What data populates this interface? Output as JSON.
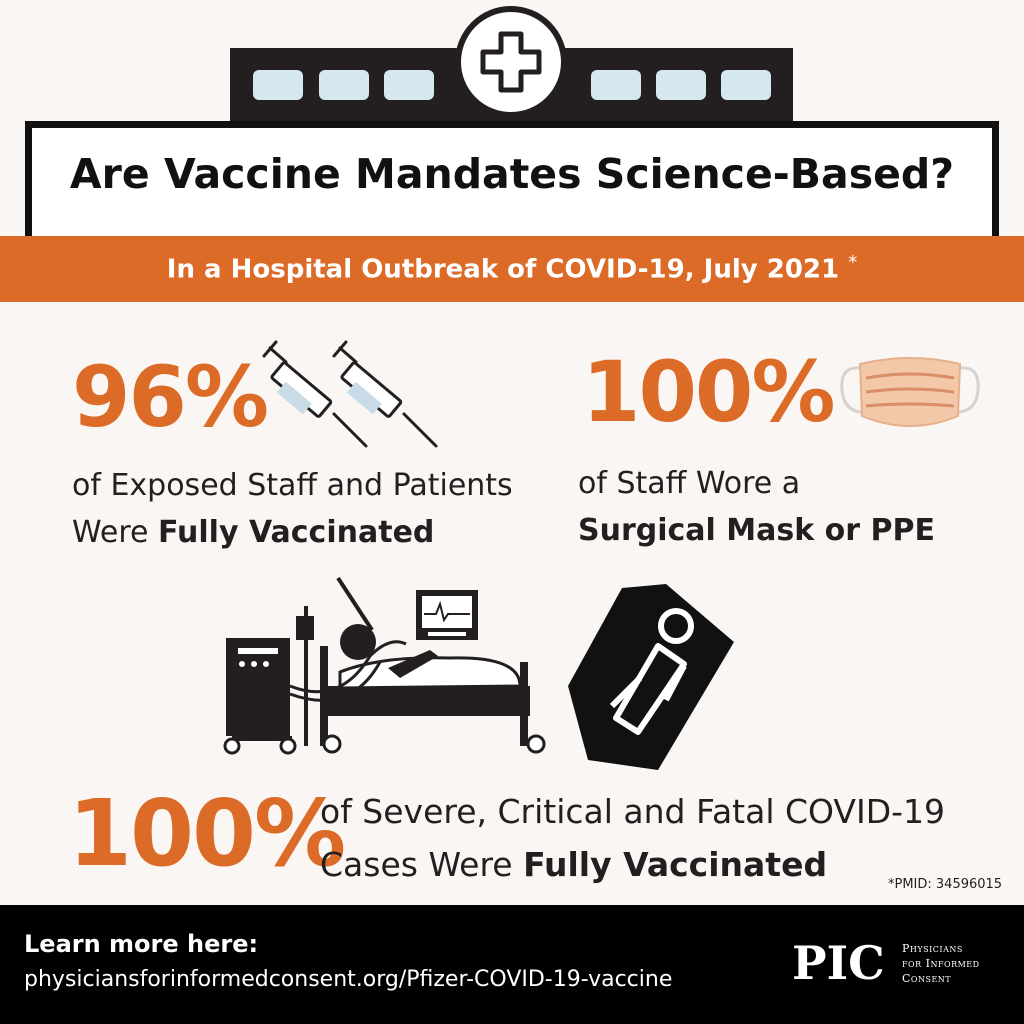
{
  "header": {
    "title": "Are Vaccine Mandates Science-Based?",
    "subtitle": "In a Hospital Outbreak of COVID-19, July 2021",
    "subtitle_mark": "*"
  },
  "stats": [
    {
      "value": "96%",
      "line1": "of Exposed Staff and Patients",
      "line2_plain": "Were ",
      "line2_bold": "Fully Vaccinated",
      "icon": "syringe-icon"
    },
    {
      "value": "100%",
      "line1": "of Staff Wore a",
      "line2_bold": "Surgical Mask or PPE",
      "icon": "surgical-mask-icon"
    },
    {
      "value": "100%",
      "line1": "of Severe, Critical and Fatal COVID-19",
      "line2_plain": "Cases Were ",
      "line2_bold": "Fully Vaccinated",
      "icon": "hospital-bed-icon"
    }
  ],
  "footnote": "*PMID: 34596015",
  "footer": {
    "learn_more": "Learn more here:",
    "url": "physiciansforinformedconsent.org/Pfizer-COVID-19-vaccine",
    "logo_text": "PIC",
    "org_line1": "Physicians",
    "org_line2": "for Informed",
    "org_line3": "Consent"
  },
  "colors": {
    "accent": "#dc6b27",
    "dark": "#231f20",
    "background": "#faf6f3",
    "window": "#d6e8ef",
    "mask": "#f3c8a8"
  }
}
